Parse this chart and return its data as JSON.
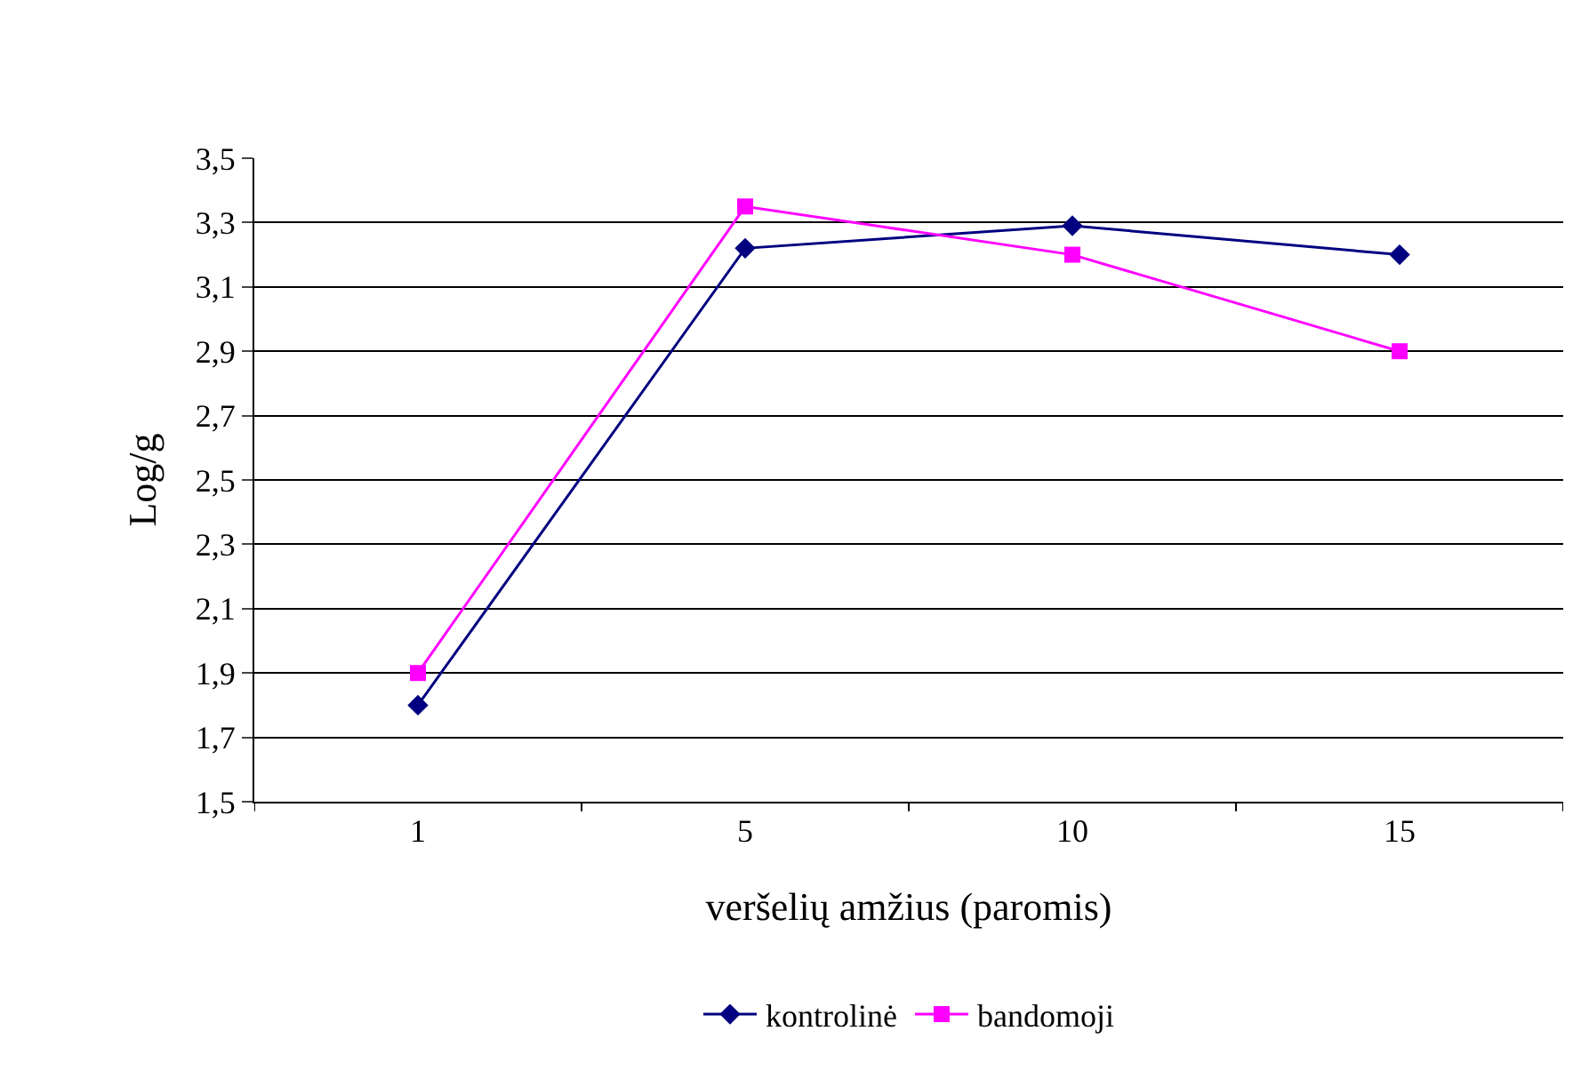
{
  "chart_data": {
    "type": "line",
    "xlabel": "veršelių amžius (paromis)",
    "ylabel": "Log/g",
    "categories": [
      "1",
      "5",
      "10",
      "15"
    ],
    "series": [
      {
        "name": "kontrolinė",
        "color": "#000080",
        "marker": "diamond",
        "values": [
          1.8,
          3.22,
          3.29,
          3.2
        ]
      },
      {
        "name": "bandomoji",
        "color": "#ff00ff",
        "marker": "square",
        "values": [
          1.9,
          3.35,
          3.2,
          2.9
        ]
      }
    ],
    "ylim": [
      1.5,
      3.5
    ],
    "yticks": [
      {
        "value": 1.5,
        "label": "1,5"
      },
      {
        "value": 1.7,
        "label": "1,7"
      },
      {
        "value": 1.9,
        "label": "1,9"
      },
      {
        "value": 2.1,
        "label": "2,1"
      },
      {
        "value": 2.3,
        "label": "2,3"
      },
      {
        "value": 2.5,
        "label": "2,5"
      },
      {
        "value": 2.7,
        "label": "2,7"
      },
      {
        "value": 2.9,
        "label": "2,9"
      },
      {
        "value": 3.1,
        "label": "3,1"
      },
      {
        "value": 3.3,
        "label": "3,3"
      },
      {
        "value": 3.5,
        "label": "3,5"
      }
    ],
    "grid": "y",
    "legend": "bottom",
    "line_style": "solid"
  }
}
